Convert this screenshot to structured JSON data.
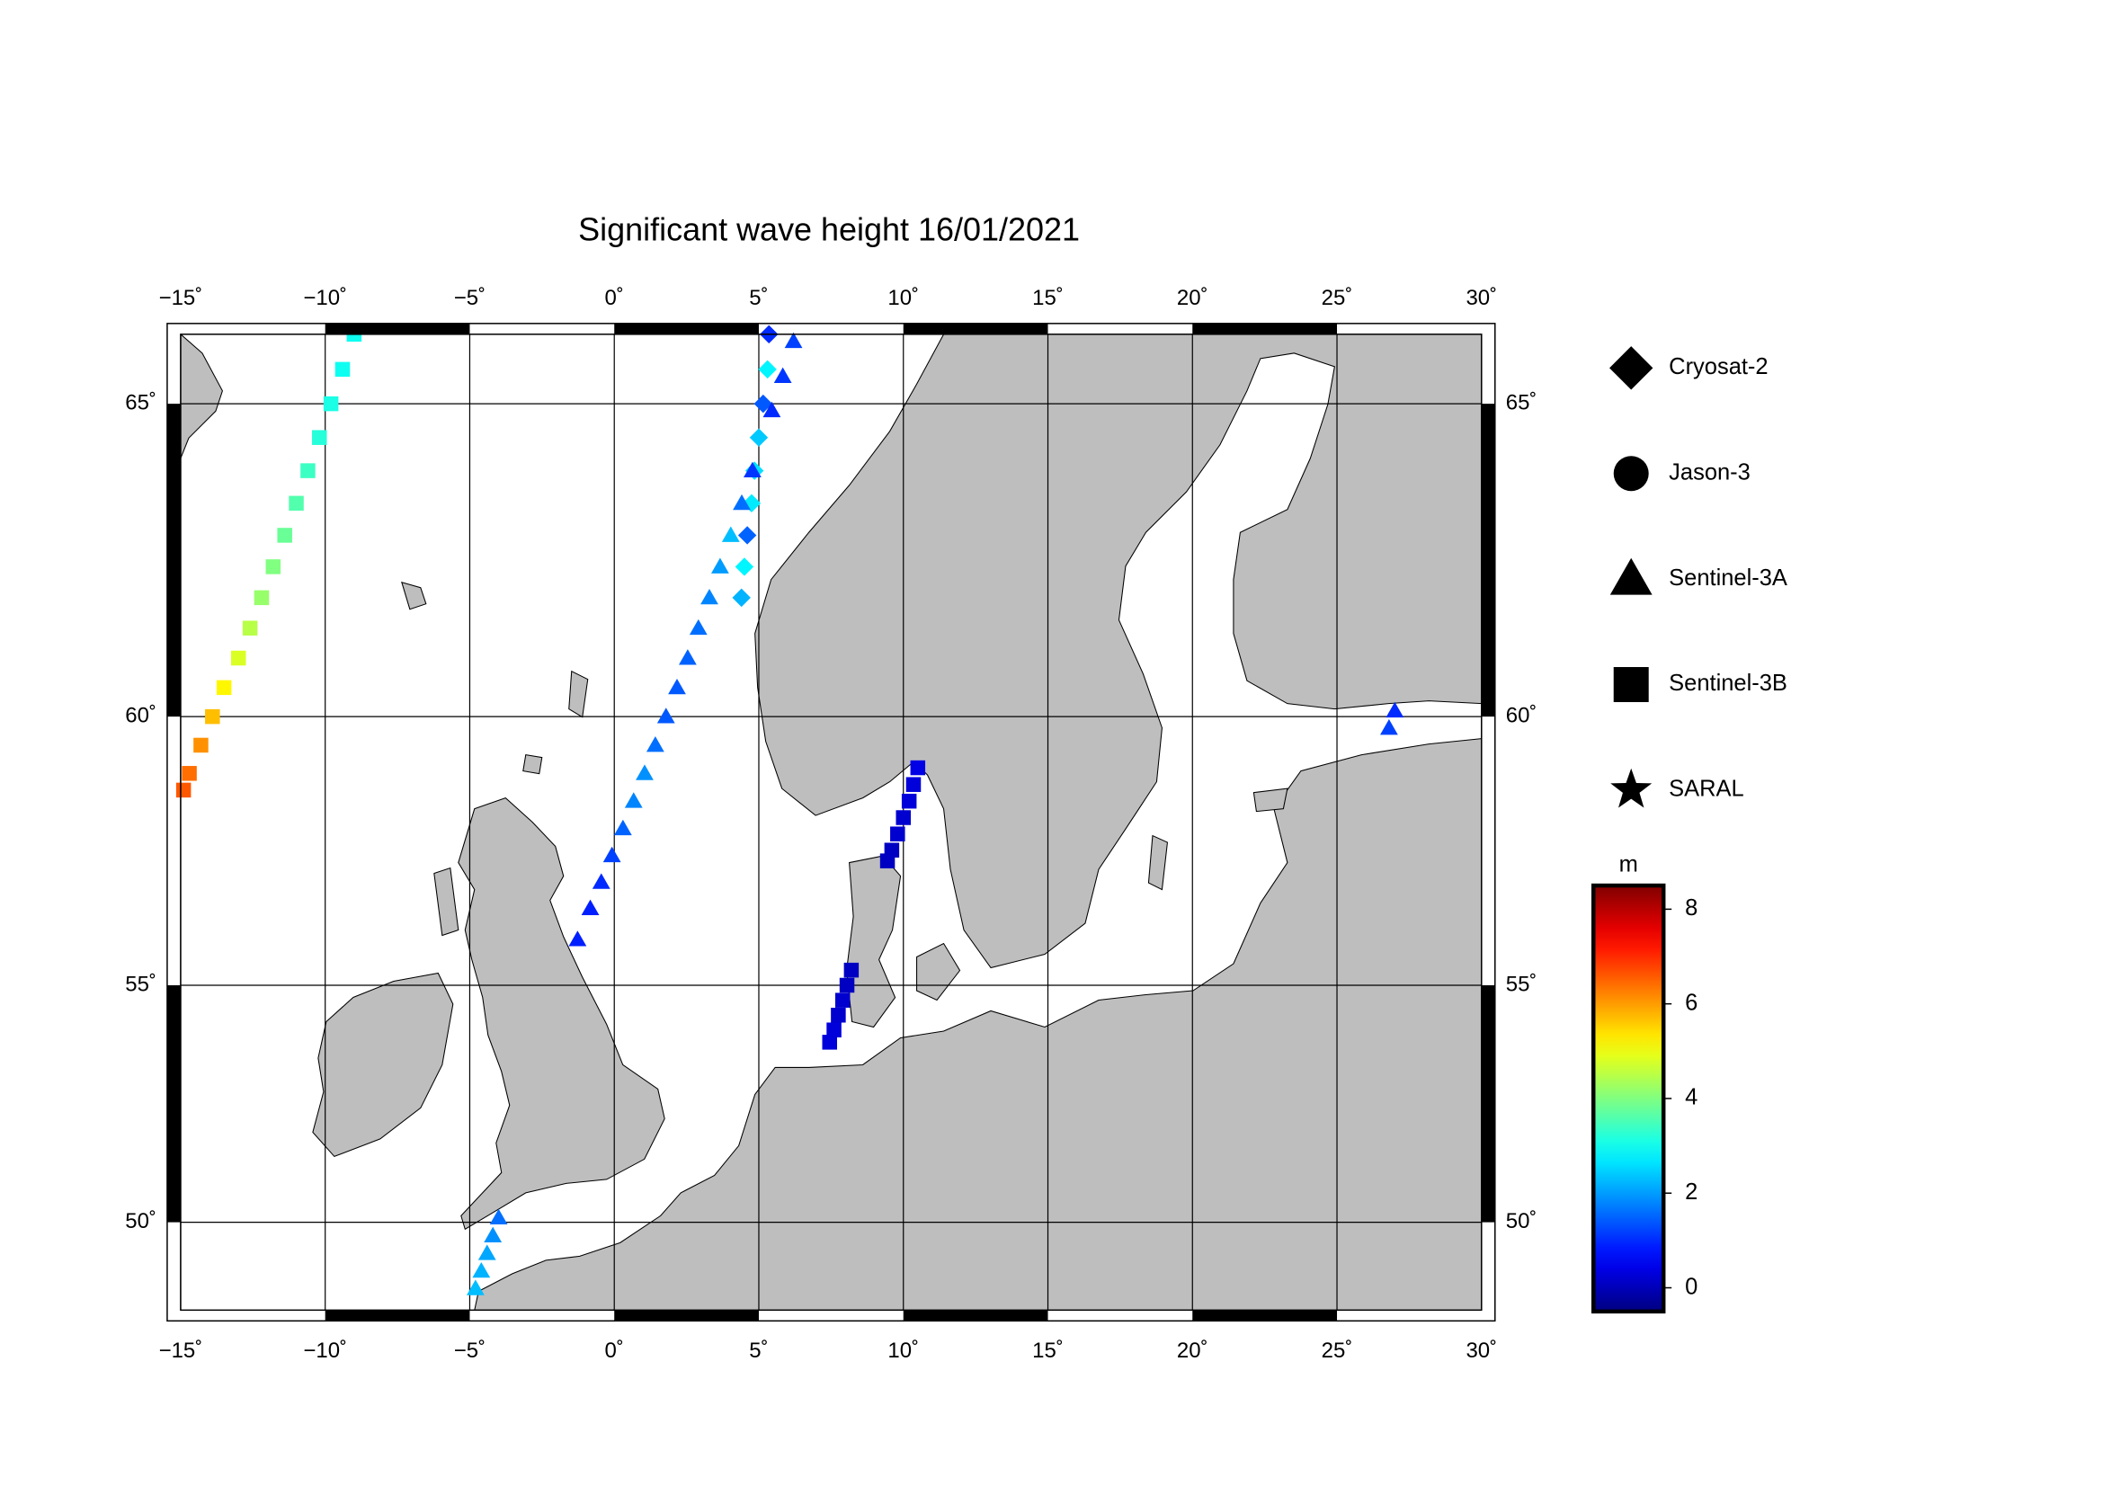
{
  "chart_data": {
    "type": "scatter",
    "title": "Significant wave height 16/01/2021",
    "xlim": [
      -15,
      30
    ],
    "ylim": [
      48,
      66
    ],
    "xticks": [
      {
        "value": -15,
        "label": "−15˚"
      },
      {
        "value": -10,
        "label": "−10˚"
      },
      {
        "value": -5,
        "label": "−5˚"
      },
      {
        "value": 0,
        "label": "0˚"
      },
      {
        "value": 5,
        "label": "5˚"
      },
      {
        "value": 10,
        "label": "10˚"
      },
      {
        "value": 15,
        "label": "15˚"
      },
      {
        "value": 20,
        "label": "20˚"
      },
      {
        "value": 25,
        "label": "25˚"
      },
      {
        "value": 30,
        "label": "30˚"
      }
    ],
    "yticks": [
      {
        "value": 50,
        "label": "50˚"
      },
      {
        "value": 55,
        "label": "55˚"
      },
      {
        "value": 60,
        "label": "60˚"
      },
      {
        "value": 65,
        "label": "65˚"
      }
    ],
    "grid": true,
    "colorbar_label": "m",
    "clim": [
      -0.5,
      8.5
    ],
    "cticks": [
      0,
      2,
      4,
      6,
      8
    ],
    "series": [
      {
        "name": "Cryosat-2",
        "marker": "diamond",
        "lon": [
          5.35,
          5.3,
          5.15,
          5.0,
          4.85,
          4.75,
          4.6,
          4.5,
          4.4
        ],
        "lat": [
          66.0,
          65.5,
          65.0,
          64.5,
          64.0,
          63.5,
          63.0,
          62.5,
          62.0
        ],
        "values": [
          1.0,
          2.8,
          1.4,
          2.4,
          2.6,
          2.7,
          1.5,
          2.8,
          2.2
        ]
      },
      {
        "name": "Jason-3",
        "marker": "circle",
        "lon": [],
        "lat": [],
        "values": []
      },
      {
        "name": "Sentinel-3A",
        "marker": "triangle",
        "lon": [
          6.2,
          5.83,
          5.45,
          4.78,
          4.41,
          4.03,
          3.66,
          3.29,
          2.91,
          2.54,
          2.17,
          1.79,
          1.42,
          1.05,
          0.67,
          0.3,
          -0.08,
          -0.45,
          -0.83,
          -1.27,
          27.0,
          26.8,
          -4.0,
          -4.2,
          -4.4,
          -4.6,
          -4.8
        ],
        "lat": [
          65.9,
          65.4,
          64.9,
          64.0,
          63.5,
          63.0,
          62.5,
          62.0,
          61.5,
          61.0,
          60.5,
          60.0,
          59.5,
          59.0,
          58.5,
          58.0,
          57.5,
          57.0,
          56.5,
          55.9,
          60.1,
          59.8,
          50.1,
          49.7,
          49.3,
          48.9,
          48.5
        ],
        "values": [
          1.2,
          1.1,
          1.0,
          1.1,
          1.6,
          2.3,
          2.0,
          1.8,
          1.6,
          1.5,
          1.4,
          1.4,
          1.6,
          1.9,
          1.8,
          1.5,
          1.2,
          1.0,
          0.9,
          0.9,
          1.0,
          1.2,
          1.6,
          1.9,
          2.1,
          2.2,
          2.3
        ]
      },
      {
        "name": "Sentinel-3B",
        "marker": "square",
        "lon": [
          -9.0,
          -9.4,
          -9.8,
          -10.2,
          -10.6,
          -11.0,
          -11.4,
          -11.8,
          -12.2,
          -12.6,
          -13.0,
          -13.5,
          -13.9,
          -14.3,
          -14.7,
          -14.9,
          10.5,
          10.35,
          10.2,
          10.0,
          9.8,
          9.6,
          9.45,
          8.2,
          8.05,
          7.9,
          7.75,
          7.6,
          7.45
        ],
        "lat": [
          66.0,
          65.5,
          65.0,
          64.5,
          64.0,
          63.5,
          63.0,
          62.5,
          62.0,
          61.5,
          61.0,
          60.5,
          60.0,
          59.5,
          59.0,
          58.7,
          59.1,
          58.8,
          58.5,
          58.2,
          57.9,
          57.6,
          57.4,
          55.3,
          55.0,
          54.7,
          54.4,
          54.1,
          53.85
        ],
        "values": [
          3.0,
          3.0,
          3.1,
          3.2,
          3.4,
          3.6,
          3.8,
          4.0,
          4.2,
          4.5,
          4.8,
          5.2,
          5.7,
          6.1,
          6.4,
          6.6,
          0.4,
          0.3,
          0.3,
          0.2,
          0.2,
          0.1,
          0.1,
          0.1,
          0.1,
          0.2,
          0.2,
          0.3,
          0.3
        ]
      },
      {
        "name": "SARAL",
        "marker": "star",
        "lon": [],
        "lat": [],
        "values": []
      }
    ]
  }
}
